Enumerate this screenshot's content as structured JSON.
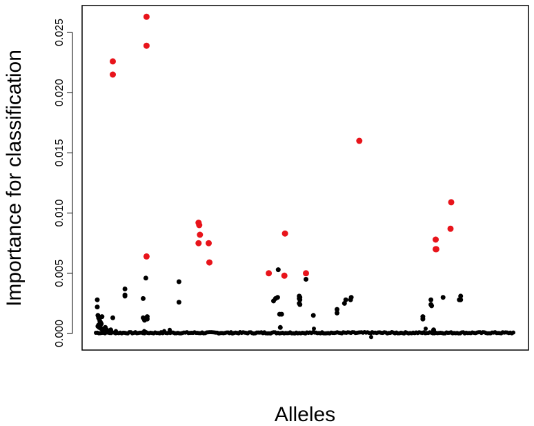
{
  "chart_data": {
    "type": "scatter",
    "xlabel": "Alleles",
    "ylabel": "Importance for classification",
    "ylim": [
      -0.0005,
      0.0262
    ],
    "xlim": [
      0,
      620
    ],
    "y_ticks": [
      "0.000",
      "0.005",
      "0.010",
      "0.015",
      "0.020",
      "0.025"
    ],
    "y_tick_values": [
      0,
      0.005,
      0.01,
      0.015,
      0.02,
      0.025
    ],
    "x_ticks_shown": false,
    "grid": false,
    "legend": "none",
    "colors": {
      "highlighted": "#e8141b",
      "normal": "#000000"
    },
    "series": [
      {
        "color": "#e8141b",
        "x": [
          25,
          25,
          75,
          75,
          75,
          152,
          153,
          154,
          152,
          167,
          168,
          256,
          280,
          279,
          311,
          390,
          503,
          503,
          504,
          526,
          525
        ],
        "y": [
          0.0226,
          0.0215,
          0.0263,
          0.0239,
          0.0064,
          0.0092,
          0.009,
          0.0082,
          0.0075,
          0.0075,
          0.0059,
          0.005,
          0.0083,
          0.0048,
          0.005,
          0.016,
          0.0078,
          0.007,
          0.007,
          0.0109,
          0.0087
        ]
      },
      {
        "color": "#000000",
        "x": [
          2,
          2,
          3,
          4,
          5,
          6,
          7,
          8,
          9,
          3,
          4,
          5,
          6,
          8,
          10,
          12,
          14,
          16,
          18,
          20,
          22,
          25,
          43,
          43,
          43,
          70,
          70,
          72,
          72,
          74,
          75,
          76,
          76,
          123,
          123,
          263,
          266,
          269,
          270,
          272,
          273,
          275,
          301,
          301,
          301,
          302,
          302,
          302,
          311,
          322,
          357,
          357,
          368,
          370,
          377,
          378,
          484,
          484,
          496,
          496,
          497,
          500,
          500,
          514,
          540,
          540,
          538
        ],
        "y": [
          0.0028,
          0.0022,
          0.0015,
          0.0013,
          0.0012,
          0.001,
          0.0009,
          0.0008,
          0.0014,
          0.0006,
          0.0007,
          0.0005,
          0.0006,
          0.0004,
          0.0003,
          0.0004,
          0.0005,
          0.0003,
          0.0002,
          0.0002,
          0.0003,
          0.0013,
          0.0037,
          0.0032,
          0.0031,
          0.0029,
          0.0013,
          0.0012,
          0.0011,
          0.0046,
          0.0013,
          0.0014,
          0.0012,
          0.0043,
          0.0026,
          0.0027,
          0.0029,
          0.003,
          0.0053,
          0.0016,
          0.0005,
          0.0016,
          0.0031,
          0.0029,
          0.0025,
          0.0024,
          0.003,
          0.0028,
          0.0045,
          0.0015,
          0.0017,
          0.002,
          0.0025,
          0.0028,
          0.0028,
          0.003,
          0.0014,
          0.0012,
          0.0028,
          0.0024,
          0.0023,
          0.0003,
          0.0002,
          0.003,
          0.0028,
          0.0031,
          0.0028
        ]
      }
    ]
  }
}
